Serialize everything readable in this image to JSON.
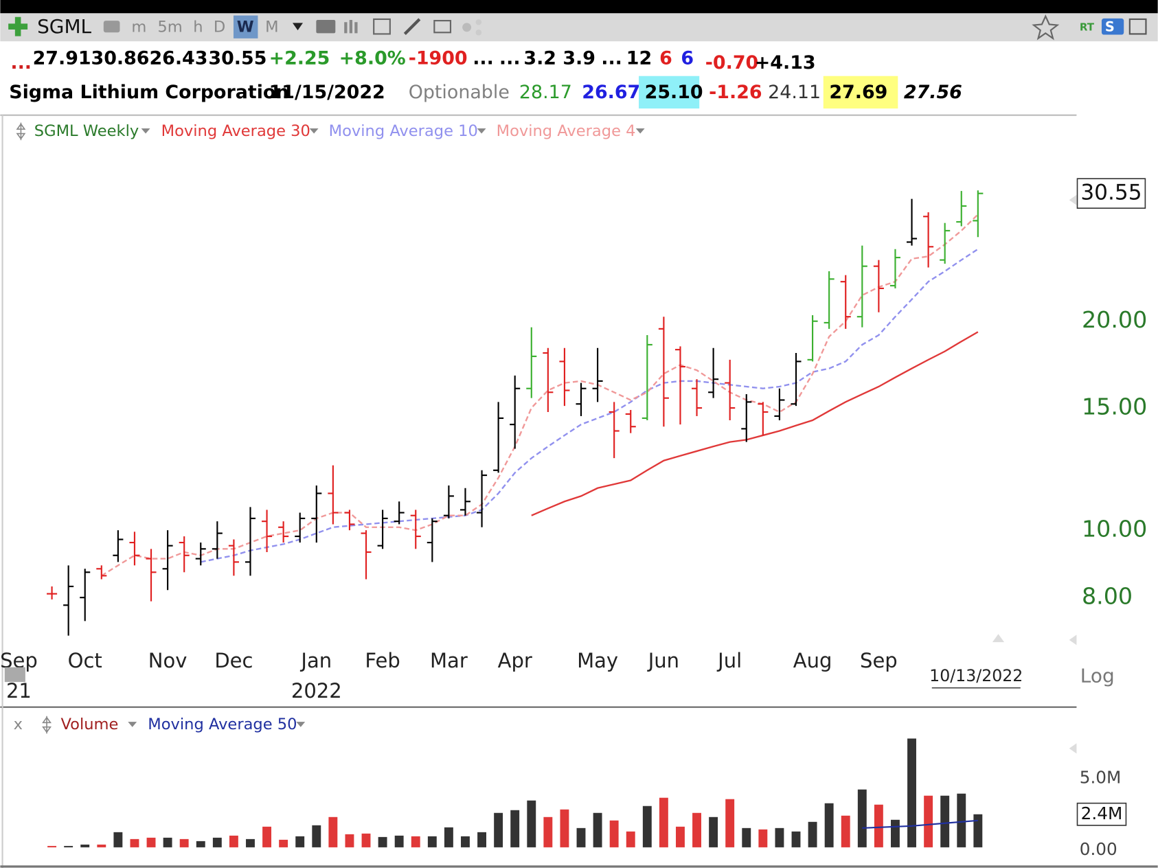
{
  "toolbar": {
    "symbol": "SGML",
    "intervals": [
      "m",
      "5m",
      "h",
      "D",
      "W",
      "M"
    ],
    "active": "W",
    "right_labels": [
      "RT",
      "S"
    ]
  },
  "quote_row": [
    {
      "text": "...",
      "color": "#d02020"
    },
    {
      "text": "27.91",
      "color": "#000000"
    },
    {
      "text": "30.86",
      "color": "#000000"
    },
    {
      "text": "26.43",
      "color": "#000000"
    },
    {
      "text": "30.55",
      "color": "#000000"
    },
    {
      "text": "+2.25",
      "color": "#2a9a2a"
    },
    {
      "text": "+8.0%",
      "color": "#2a9a2a"
    },
    {
      "text": "-1900",
      "color": "#e02020"
    },
    {
      "text": "...",
      "color": "#000000"
    },
    {
      "text": "...",
      "color": "#000000"
    },
    {
      "text": "3.2",
      "color": "#000000"
    },
    {
      "text": "3.9",
      "color": "#000000"
    },
    {
      "text": "...",
      "color": "#000000"
    },
    {
      "text": "12",
      "color": "#000000"
    },
    {
      "text": "6",
      "color": "#e02020"
    },
    {
      "text": "6",
      "color": "#2020e0"
    },
    {
      "text": "-0.70",
      "color": "#e02020"
    },
    {
      "text": "+4.13",
      "color": "#000000"
    }
  ],
  "info_row": [
    {
      "text": "Sigma Lithium Corporation",
      "color": "#000000"
    },
    {
      "text": "11/15/2022",
      "color": "#000000"
    },
    {
      "text": "Optionable",
      "color": "#808080"
    },
    {
      "text": "28.17",
      "color": "#2a9a2a"
    },
    {
      "text": "26.67",
      "color": "#2020e0"
    },
    {
      "text": "25.10",
      "color": "#000000",
      "bg": "#8ff0f8"
    },
    {
      "text": "-1.26",
      "color": "#e02020"
    },
    {
      "text": "24.11",
      "color": "#333333"
    },
    {
      "text": "27.69",
      "color": "#000000",
      "bg": "#ffff80"
    },
    {
      "text": "27.56",
      "color": "#000000"
    }
  ],
  "chart_data": [
    {
      "type": "ohlc",
      "title": "SGML Weekly",
      "title_color": "#2a7a2a",
      "log": true,
      "ylim": [
        6.9,
        36
      ],
      "yticks": [
        {
          "value": 8,
          "label": "8.00"
        },
        {
          "value": 10,
          "label": "10.00"
        },
        {
          "value": 15,
          "label": "15.00"
        },
        {
          "value": 20,
          "label": "20.00"
        }
      ],
      "xticks": [
        {
          "value": -2,
          "label": "Sep"
        },
        {
          "value": 2,
          "label": "Oct"
        },
        {
          "value": 7,
          "label": "Nov"
        },
        {
          "value": 11,
          "label": "Dec"
        },
        {
          "value": 16,
          "label": "Jan"
        },
        {
          "value": 20,
          "label": "Feb"
        },
        {
          "value": 24,
          "label": "Mar"
        },
        {
          "value": 28,
          "label": "Apr"
        },
        {
          "value": 33,
          "label": "May"
        },
        {
          "value": 37,
          "label": "Jun"
        },
        {
          "value": 41,
          "label": "Jul"
        },
        {
          "value": 46,
          "label": "Aug"
        },
        {
          "value": 50,
          "label": "Sep"
        }
      ],
      "year_labels": [
        {
          "value": -2,
          "label": "21"
        },
        {
          "value": 16,
          "label": "2022"
        }
      ],
      "date_label": "10/13/2022",
      "scale_label": "Log",
      "up_color": "#000000",
      "down_color": "#e02020",
      "strong_color": "#3cb030",
      "bar_colors": [
        "down",
        "up",
        "up",
        "down",
        "up",
        "down",
        "down",
        "up",
        "down",
        "up",
        "up",
        "down",
        "up",
        "down",
        "down",
        "up",
        "up",
        "down",
        "down",
        "down",
        "up",
        "up",
        "down",
        "up",
        "up",
        "up",
        "up",
        "up",
        "up",
        "strong",
        "down",
        "down",
        "up",
        "up",
        "down",
        "down",
        "strong",
        "down",
        "down",
        "down",
        "up",
        "down",
        "up",
        "down",
        "up",
        "up",
        "strong",
        "strong",
        "down",
        "strong",
        "down",
        "strong",
        "up",
        "down",
        "strong",
        "strong",
        "strong"
      ],
      "open": [
        8.1,
        7.8,
        8.0,
        8.8,
        9.2,
        9.6,
        9.1,
        8.8,
        9.6,
        9.1,
        9.4,
        9.5,
        9.0,
        10.3,
        10.1,
        9.8,
        10.4,
        11.3,
        10.6,
        9.9,
        9.5,
        10.3,
        10.5,
        9.6,
        10.5,
        10.7,
        10.6,
        12.2,
        14.2,
        16.0,
        18.0,
        17.5,
        15.2,
        16.0,
        14.8,
        14.7,
        14.5,
        19.5,
        18.2,
        16.0,
        15.8,
        16.3,
        14.0,
        15.2,
        14.6,
        15.2,
        17.6,
        19.9,
        22.8,
        20.3,
        24.0,
        22.5,
        26.0,
        28.3,
        24.5,
        27.8,
        27.91
      ],
      "high": [
        8.3,
        8.9,
        8.8,
        8.9,
        10.0,
        9.95,
        9.4,
        10.0,
        9.8,
        9.6,
        10.3,
        9.7,
        10.8,
        10.7,
        10.3,
        10.6,
        11.6,
        12.4,
        10.7,
        10.0,
        10.7,
        11.0,
        10.7,
        10.4,
        11.6,
        11.5,
        12.2,
        15.3,
        16.7,
        19.6,
        18.3,
        18.3,
        16.3,
        18.3,
        15.3,
        14.9,
        19.1,
        20.3,
        18.4,
        16.5,
        18.3,
        17.6,
        15.7,
        15.3,
        16.0,
        18.0,
        20.4,
        23.6,
        23.3,
        25.7,
        24.5,
        25.4,
        30.0,
        28.7,
        27.7,
        30.8,
        30.86
      ],
      "low": [
        7.95,
        7.05,
        7.4,
        8.5,
        9.0,
        8.9,
        7.9,
        8.2,
        8.7,
        8.9,
        9.1,
        8.6,
        8.6,
        9.3,
        9.6,
        9.6,
        9.6,
        10.2,
        10.0,
        8.5,
        9.4,
        10.2,
        9.4,
        9.0,
        10.4,
        10.5,
        10.1,
        12.1,
        13.1,
        15.5,
        14.8,
        15.1,
        14.6,
        15.3,
        12.7,
        13.8,
        14.4,
        14.1,
        14.2,
        14.6,
        15.5,
        14.4,
        13.4,
        13.7,
        14.4,
        15.1,
        17.5,
        19.5,
        19.5,
        19.6,
        20.6,
        22.3,
        25.7,
        23.9,
        24.2,
        27.4,
        26.43
      ],
      "close": [
        8.1,
        8.3,
        8.7,
        8.6,
        9.7,
        9.2,
        8.7,
        9.5,
        9.2,
        9.4,
        9.9,
        9.0,
        10.4,
        9.8,
        9.8,
        10.4,
        11.3,
        10.6,
        10.2,
        9.3,
        10.4,
        10.6,
        9.8,
        10.3,
        11.2,
        11.0,
        12.0,
        14.5,
        16.0,
        17.8,
        15.8,
        15.9,
        16.0,
        16.4,
        13.9,
        14.1,
        18.5,
        15.5,
        17.2,
        15.0,
        16.5,
        15.0,
        15.3,
        14.8,
        15.4,
        17.5,
        20.0,
        23.0,
        20.3,
        24.0,
        22.3,
        24.7,
        26.3,
        25.6,
        27.0,
        29.3,
        30.55
      ],
      "series": [
        {
          "name": "Moving Average 30",
          "color": "#e03838",
          "dashed": false,
          "values": [
            null,
            null,
            null,
            null,
            null,
            null,
            null,
            null,
            null,
            null,
            null,
            null,
            null,
            null,
            null,
            null,
            null,
            null,
            null,
            null,
            null,
            null,
            null,
            null,
            null,
            null,
            null,
            null,
            null,
            10.5,
            10.75,
            11.0,
            11.2,
            11.5,
            11.65,
            11.8,
            12.2,
            12.6,
            12.8,
            13.0,
            13.2,
            13.4,
            13.5,
            13.7,
            13.9,
            14.15,
            14.4,
            14.85,
            15.3,
            15.7,
            16.1,
            16.6,
            17.1,
            17.6,
            18.1,
            18.7,
            19.3
          ]
        },
        {
          "name": "Moving Average 10",
          "color": "#9090ee",
          "dashed": true,
          "values": [
            null,
            null,
            null,
            null,
            null,
            null,
            null,
            null,
            null,
            9.0,
            9.1,
            9.2,
            9.35,
            9.45,
            9.55,
            9.7,
            9.9,
            10.1,
            10.15,
            10.2,
            10.25,
            10.3,
            10.35,
            10.4,
            10.45,
            10.5,
            10.7,
            11.3,
            12.1,
            12.7,
            13.2,
            13.7,
            14.2,
            14.5,
            14.8,
            15.3,
            15.9,
            16.3,
            16.4,
            16.4,
            16.3,
            16.2,
            16.1,
            16.0,
            16.1,
            16.3,
            16.9,
            17.1,
            17.5,
            18.5,
            19.1,
            20.3,
            21.5,
            22.8,
            23.6,
            24.5,
            25.4
          ]
        },
        {
          "name": "Moving Average 4",
          "color": "#f09898",
          "dashed": true,
          "values": [
            null,
            null,
            null,
            8.6,
            8.9,
            9.2,
            9.1,
            9.1,
            9.3,
            9.2,
            9.4,
            9.4,
            9.6,
            9.8,
            9.9,
            10.0,
            10.4,
            10.6,
            10.6,
            10.1,
            10.1,
            10.1,
            10.0,
            10.2,
            10.5,
            10.5,
            10.9,
            11.9,
            13.2,
            15.0,
            15.9,
            16.3,
            16.4,
            16.2,
            15.8,
            15.4,
            15.8,
            16.8,
            17.3,
            17.0,
            16.4,
            15.8,
            15.4,
            15.2,
            14.8,
            15.3,
            16.8,
            19.0,
            20.0,
            21.8,
            22.4,
            22.8,
            24.6,
            24.8,
            25.8,
            27.0,
            28.5
          ]
        }
      ]
    },
    {
      "type": "bar",
      "title": "Volume",
      "title_color": "#a02020",
      "pane_close": "x",
      "ylim": [
        0,
        8.2
      ],
      "yticks": [
        {
          "value": 0,
          "label": "0.00"
        },
        {
          "value": 5,
          "label": "5.0M"
        }
      ],
      "current_label": "2.4M",
      "up_color": "#333333",
      "down_color": "#e03838",
      "values": [
        0.1,
        0.1,
        0.2,
        0.2,
        1.1,
        0.6,
        0.7,
        0.7,
        0.6,
        0.45,
        0.7,
        0.85,
        0.6,
        1.5,
        0.55,
        0.8,
        1.6,
        2.2,
        0.95,
        1.0,
        0.75,
        0.85,
        0.8,
        0.8,
        1.45,
        0.8,
        1.1,
        2.5,
        2.7,
        3.4,
        2.2,
        2.75,
        1.4,
        2.5,
        1.95,
        1.15,
        3.0,
        3.6,
        1.5,
        2.5,
        2.2,
        3.5,
        1.4,
        1.3,
        1.4,
        1.15,
        1.85,
        3.2,
        2.3,
        4.2,
        3.1,
        2.0,
        7.9,
        3.75,
        3.75,
        3.9,
        2.4
      ],
      "series": [
        {
          "name": "Moving Average 50",
          "color": "#2030a0",
          "dashed": false,
          "values": [
            null,
            null,
            null,
            null,
            null,
            null,
            null,
            null,
            null,
            null,
            null,
            null,
            null,
            null,
            null,
            null,
            null,
            null,
            null,
            null,
            null,
            null,
            null,
            null,
            null,
            null,
            null,
            null,
            null,
            null,
            null,
            null,
            null,
            null,
            null,
            null,
            null,
            null,
            null,
            null,
            null,
            null,
            null,
            null,
            null,
            null,
            null,
            null,
            null,
            1.4,
            1.45,
            1.5,
            1.55,
            1.65,
            1.75,
            1.85,
            1.95
          ]
        }
      ]
    }
  ]
}
